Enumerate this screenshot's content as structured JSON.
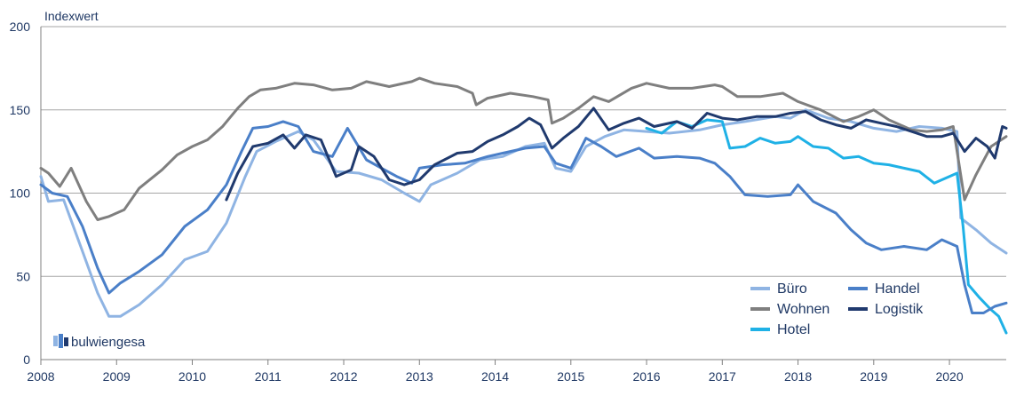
{
  "chart_data": {
    "type": "line",
    "ylabel": "Indexwert",
    "ylim": [
      0,
      200
    ],
    "yticks": [
      0,
      50,
      100,
      150,
      200
    ],
    "xlim": [
      2008,
      2020.75
    ],
    "xticks": [
      "2008",
      "2009",
      "2010",
      "2011",
      "2012",
      "2013",
      "2014",
      "2015",
      "2016",
      "2017",
      "2018",
      "2019",
      "2020"
    ],
    "grid": "horizontal",
    "legend_placement": "bottom-right",
    "series": [
      {
        "name": "Büro",
        "color": "#8fb4e3",
        "points": [
          [
            2008,
            110
          ],
          [
            2008.1,
            95
          ],
          [
            2008.3,
            96
          ],
          [
            2008.55,
            65
          ],
          [
            2008.75,
            40
          ],
          [
            2008.9,
            26
          ],
          [
            2009.05,
            26
          ],
          [
            2009.3,
            33
          ],
          [
            2009.6,
            45
          ],
          [
            2009.9,
            60
          ],
          [
            2010.2,
            65
          ],
          [
            2010.45,
            82
          ],
          [
            2010.7,
            110
          ],
          [
            2010.85,
            125
          ],
          [
            2011.1,
            131
          ],
          [
            2011.4,
            137
          ],
          [
            2011.6,
            132
          ],
          [
            2011.9,
            113
          ],
          [
            2012.2,
            112
          ],
          [
            2012.5,
            108
          ],
          [
            2012.8,
            100
          ],
          [
            2013.0,
            95
          ],
          [
            2013.15,
            105
          ],
          [
            2013.5,
            112
          ],
          [
            2013.8,
            120
          ],
          [
            2014.1,
            122
          ],
          [
            2014.4,
            128
          ],
          [
            2014.65,
            130
          ],
          [
            2014.8,
            115
          ],
          [
            2015.0,
            113
          ],
          [
            2015.2,
            128
          ],
          [
            2015.45,
            134
          ],
          [
            2015.7,
            138
          ],
          [
            2016.0,
            137
          ],
          [
            2016.3,
            136
          ],
          [
            2016.7,
            138
          ],
          [
            2017.0,
            141
          ],
          [
            2017.3,
            143
          ],
          [
            2017.7,
            146
          ],
          [
            2017.9,
            145
          ],
          [
            2018.1,
            150
          ],
          [
            2018.4,
            145
          ],
          [
            2018.7,
            143
          ],
          [
            2019.0,
            139
          ],
          [
            2019.3,
            137
          ],
          [
            2019.6,
            140
          ],
          [
            2019.9,
            139
          ],
          [
            2020.1,
            137
          ],
          [
            2020.15,
            85
          ],
          [
            2020.35,
            78
          ],
          [
            2020.55,
            70
          ],
          [
            2020.75,
            64
          ]
        ]
      },
      {
        "name": "Wohnen",
        "color": "#7f7f7f",
        "points": [
          [
            2008,
            115
          ],
          [
            2008.1,
            112
          ],
          [
            2008.25,
            104
          ],
          [
            2008.4,
            115
          ],
          [
            2008.6,
            95
          ],
          [
            2008.75,
            84
          ],
          [
            2008.9,
            86
          ],
          [
            2009.1,
            90
          ],
          [
            2009.3,
            103
          ],
          [
            2009.6,
            114
          ],
          [
            2009.8,
            123
          ],
          [
            2010.0,
            128
          ],
          [
            2010.2,
            132
          ],
          [
            2010.4,
            140
          ],
          [
            2010.6,
            151
          ],
          [
            2010.75,
            158
          ],
          [
            2010.9,
            162
          ],
          [
            2011.1,
            163
          ],
          [
            2011.35,
            166
          ],
          [
            2011.6,
            165
          ],
          [
            2011.85,
            162
          ],
          [
            2012.1,
            163
          ],
          [
            2012.3,
            167
          ],
          [
            2012.6,
            164
          ],
          [
            2012.9,
            167
          ],
          [
            2013.0,
            169
          ],
          [
            2013.2,
            166
          ],
          [
            2013.5,
            164
          ],
          [
            2013.7,
            160
          ],
          [
            2013.75,
            153
          ],
          [
            2013.9,
            157
          ],
          [
            2014.2,
            160
          ],
          [
            2014.5,
            158
          ],
          [
            2014.7,
            156
          ],
          [
            2014.75,
            142
          ],
          [
            2014.9,
            145
          ],
          [
            2015.1,
            151
          ],
          [
            2015.3,
            158
          ],
          [
            2015.5,
            155
          ],
          [
            2015.8,
            163
          ],
          [
            2016.0,
            166
          ],
          [
            2016.3,
            163
          ],
          [
            2016.6,
            163
          ],
          [
            2016.9,
            165
          ],
          [
            2017.0,
            164
          ],
          [
            2017.2,
            158
          ],
          [
            2017.5,
            158
          ],
          [
            2017.8,
            160
          ],
          [
            2018.0,
            155
          ],
          [
            2018.3,
            150
          ],
          [
            2018.6,
            143
          ],
          [
            2018.8,
            146
          ],
          [
            2019.0,
            150
          ],
          [
            2019.2,
            144
          ],
          [
            2019.5,
            138
          ],
          [
            2019.7,
            137
          ],
          [
            2019.9,
            138
          ],
          [
            2020.05,
            140
          ],
          [
            2020.2,
            96
          ],
          [
            2020.35,
            111
          ],
          [
            2020.55,
            128
          ],
          [
            2020.75,
            134
          ]
        ]
      },
      {
        "name": "Hotel",
        "color": "#1fb1e6",
        "points": [
          [
            2016.0,
            139
          ],
          [
            2016.2,
            136
          ],
          [
            2016.4,
            143
          ],
          [
            2016.6,
            140
          ],
          [
            2016.8,
            144
          ],
          [
            2017.0,
            143
          ],
          [
            2017.1,
            127
          ],
          [
            2017.3,
            128
          ],
          [
            2017.5,
            133
          ],
          [
            2017.7,
            130
          ],
          [
            2017.9,
            131
          ],
          [
            2018.0,
            134
          ],
          [
            2018.2,
            128
          ],
          [
            2018.4,
            127
          ],
          [
            2018.6,
            121
          ],
          [
            2018.8,
            122
          ],
          [
            2019.0,
            118
          ],
          [
            2019.2,
            117
          ],
          [
            2019.4,
            115
          ],
          [
            2019.6,
            113
          ],
          [
            2019.8,
            106
          ],
          [
            2020.0,
            110
          ],
          [
            2020.1,
            112
          ],
          [
            2020.18,
            80
          ],
          [
            2020.25,
            45
          ],
          [
            2020.4,
            37
          ],
          [
            2020.55,
            30
          ],
          [
            2020.65,
            26
          ],
          [
            2020.75,
            16
          ]
        ]
      },
      {
        "name": "Handel",
        "color": "#4a7fc8",
        "points": [
          [
            2008,
            105
          ],
          [
            2008.15,
            100
          ],
          [
            2008.35,
            98
          ],
          [
            2008.55,
            80
          ],
          [
            2008.75,
            55
          ],
          [
            2008.9,
            40
          ],
          [
            2009.05,
            46
          ],
          [
            2009.3,
            53
          ],
          [
            2009.6,
            63
          ],
          [
            2009.9,
            80
          ],
          [
            2010.2,
            90
          ],
          [
            2010.45,
            105
          ],
          [
            2010.65,
            125
          ],
          [
            2010.8,
            139
          ],
          [
            2011.0,
            140
          ],
          [
            2011.2,
            143
          ],
          [
            2011.4,
            140
          ],
          [
            2011.6,
            125
          ],
          [
            2011.85,
            122
          ],
          [
            2012.05,
            139
          ],
          [
            2012.3,
            120
          ],
          [
            2012.5,
            115
          ],
          [
            2012.7,
            110
          ],
          [
            2012.9,
            106
          ],
          [
            2013.0,
            115
          ],
          [
            2013.3,
            117
          ],
          [
            2013.6,
            118
          ],
          [
            2013.9,
            122
          ],
          [
            2014.1,
            124
          ],
          [
            2014.4,
            127
          ],
          [
            2014.65,
            128
          ],
          [
            2014.8,
            118
          ],
          [
            2015.0,
            115
          ],
          [
            2015.2,
            133
          ],
          [
            2015.4,
            128
          ],
          [
            2015.6,
            122
          ],
          [
            2015.9,
            127
          ],
          [
            2016.1,
            121
          ],
          [
            2016.4,
            122
          ],
          [
            2016.7,
            121
          ],
          [
            2016.9,
            118
          ],
          [
            2017.1,
            110
          ],
          [
            2017.3,
            99
          ],
          [
            2017.6,
            98
          ],
          [
            2017.9,
            99
          ],
          [
            2018.0,
            105
          ],
          [
            2018.2,
            95
          ],
          [
            2018.5,
            88
          ],
          [
            2018.7,
            78
          ],
          [
            2018.9,
            70
          ],
          [
            2019.1,
            66
          ],
          [
            2019.4,
            68
          ],
          [
            2019.7,
            66
          ],
          [
            2019.9,
            72
          ],
          [
            2020.1,
            68
          ],
          [
            2020.2,
            45
          ],
          [
            2020.3,
            28
          ],
          [
            2020.45,
            28
          ],
          [
            2020.6,
            32
          ],
          [
            2020.75,
            34
          ]
        ]
      },
      {
        "name": "Logistik",
        "color": "#203a6e",
        "points": [
          [
            2010.45,
            96
          ],
          [
            2010.6,
            112
          ],
          [
            2010.8,
            128
          ],
          [
            2011.0,
            130
          ],
          [
            2011.2,
            135
          ],
          [
            2011.35,
            127
          ],
          [
            2011.5,
            135
          ],
          [
            2011.7,
            132
          ],
          [
            2011.9,
            110
          ],
          [
            2012.1,
            114
          ],
          [
            2012.2,
            128
          ],
          [
            2012.4,
            122
          ],
          [
            2012.6,
            108
          ],
          [
            2012.8,
            105
          ],
          [
            2013.0,
            108
          ],
          [
            2013.2,
            117
          ],
          [
            2013.5,
            124
          ],
          [
            2013.7,
            125
          ],
          [
            2013.9,
            131
          ],
          [
            2014.1,
            135
          ],
          [
            2014.3,
            140
          ],
          [
            2014.45,
            145
          ],
          [
            2014.6,
            141
          ],
          [
            2014.75,
            127
          ],
          [
            2014.9,
            133
          ],
          [
            2015.1,
            140
          ],
          [
            2015.3,
            151
          ],
          [
            2015.5,
            138
          ],
          [
            2015.7,
            142
          ],
          [
            2015.9,
            145
          ],
          [
            2016.1,
            140
          ],
          [
            2016.4,
            143
          ],
          [
            2016.6,
            139
          ],
          [
            2016.8,
            148
          ],
          [
            2017.0,
            145
          ],
          [
            2017.2,
            144
          ],
          [
            2017.45,
            146
          ],
          [
            2017.7,
            146
          ],
          [
            2017.9,
            148
          ],
          [
            2018.1,
            149
          ],
          [
            2018.3,
            144
          ],
          [
            2018.5,
            141
          ],
          [
            2018.7,
            139
          ],
          [
            2018.9,
            144
          ],
          [
            2019.1,
            142
          ],
          [
            2019.3,
            140
          ],
          [
            2019.5,
            137
          ],
          [
            2019.7,
            134
          ],
          [
            2019.9,
            134
          ],
          [
            2020.05,
            136
          ],
          [
            2020.2,
            125
          ],
          [
            2020.35,
            133
          ],
          [
            2020.5,
            128
          ],
          [
            2020.6,
            121
          ],
          [
            2020.7,
            140
          ],
          [
            2020.75,
            139
          ]
        ]
      }
    ]
  },
  "legend": {
    "items": [
      {
        "label": "Büro",
        "color": "#8fb4e3"
      },
      {
        "label": "Handel",
        "color": "#4a7fc8"
      },
      {
        "label": "Wohnen",
        "color": "#7f7f7f"
      },
      {
        "label": "Logistik",
        "color": "#203a6e"
      },
      {
        "label": "Hotel",
        "color": "#1fb1e6"
      }
    ]
  },
  "logo": {
    "text": "bulwiengesa"
  }
}
